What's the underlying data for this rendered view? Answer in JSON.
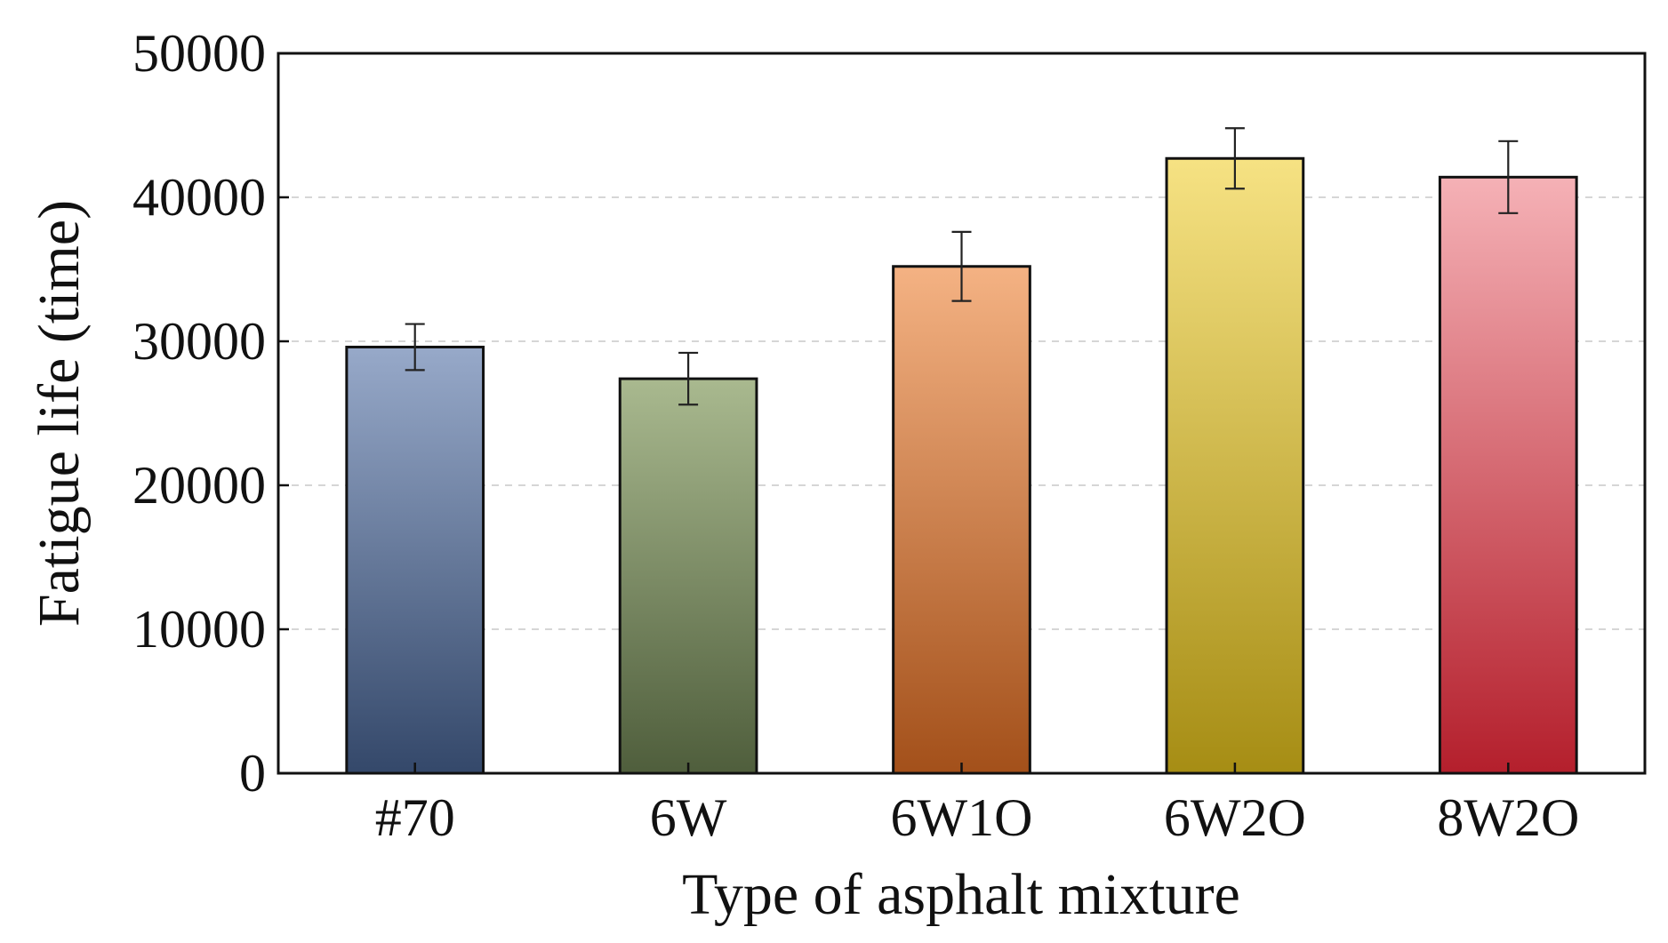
{
  "chart_data": {
    "type": "bar",
    "title": "",
    "xlabel": "Type of asphalt mixture",
    "ylabel": "Fatigue life (time)",
    "ylim": [
      0,
      50000
    ],
    "yticks": [
      0,
      10000,
      20000,
      30000,
      40000,
      50000
    ],
    "ytick_labels": [
      "0",
      "10000",
      "20000",
      "30000",
      "40000",
      "50000"
    ],
    "grid": "horizontal dashed",
    "categories": [
      "#70",
      "6W",
      "6W1O",
      "6W2O",
      "8W2O"
    ],
    "values": [
      29600,
      27400,
      35200,
      42700,
      41400
    ],
    "errors": [
      1600,
      1800,
      2400,
      2100,
      2500
    ],
    "bar_colors": [
      {
        "top": "#97a9c9",
        "bottom": "#34486a"
      },
      {
        "top": "#a9b98f",
        "bottom": "#4f5e3c"
      },
      {
        "top": "#f4b283",
        "bottom": "#a3501a"
      },
      {
        "top": "#f6e283",
        "bottom": "#a68d14"
      },
      {
        "top": "#f5b1b6",
        "bottom": "#b41f2c"
      }
    ]
  }
}
